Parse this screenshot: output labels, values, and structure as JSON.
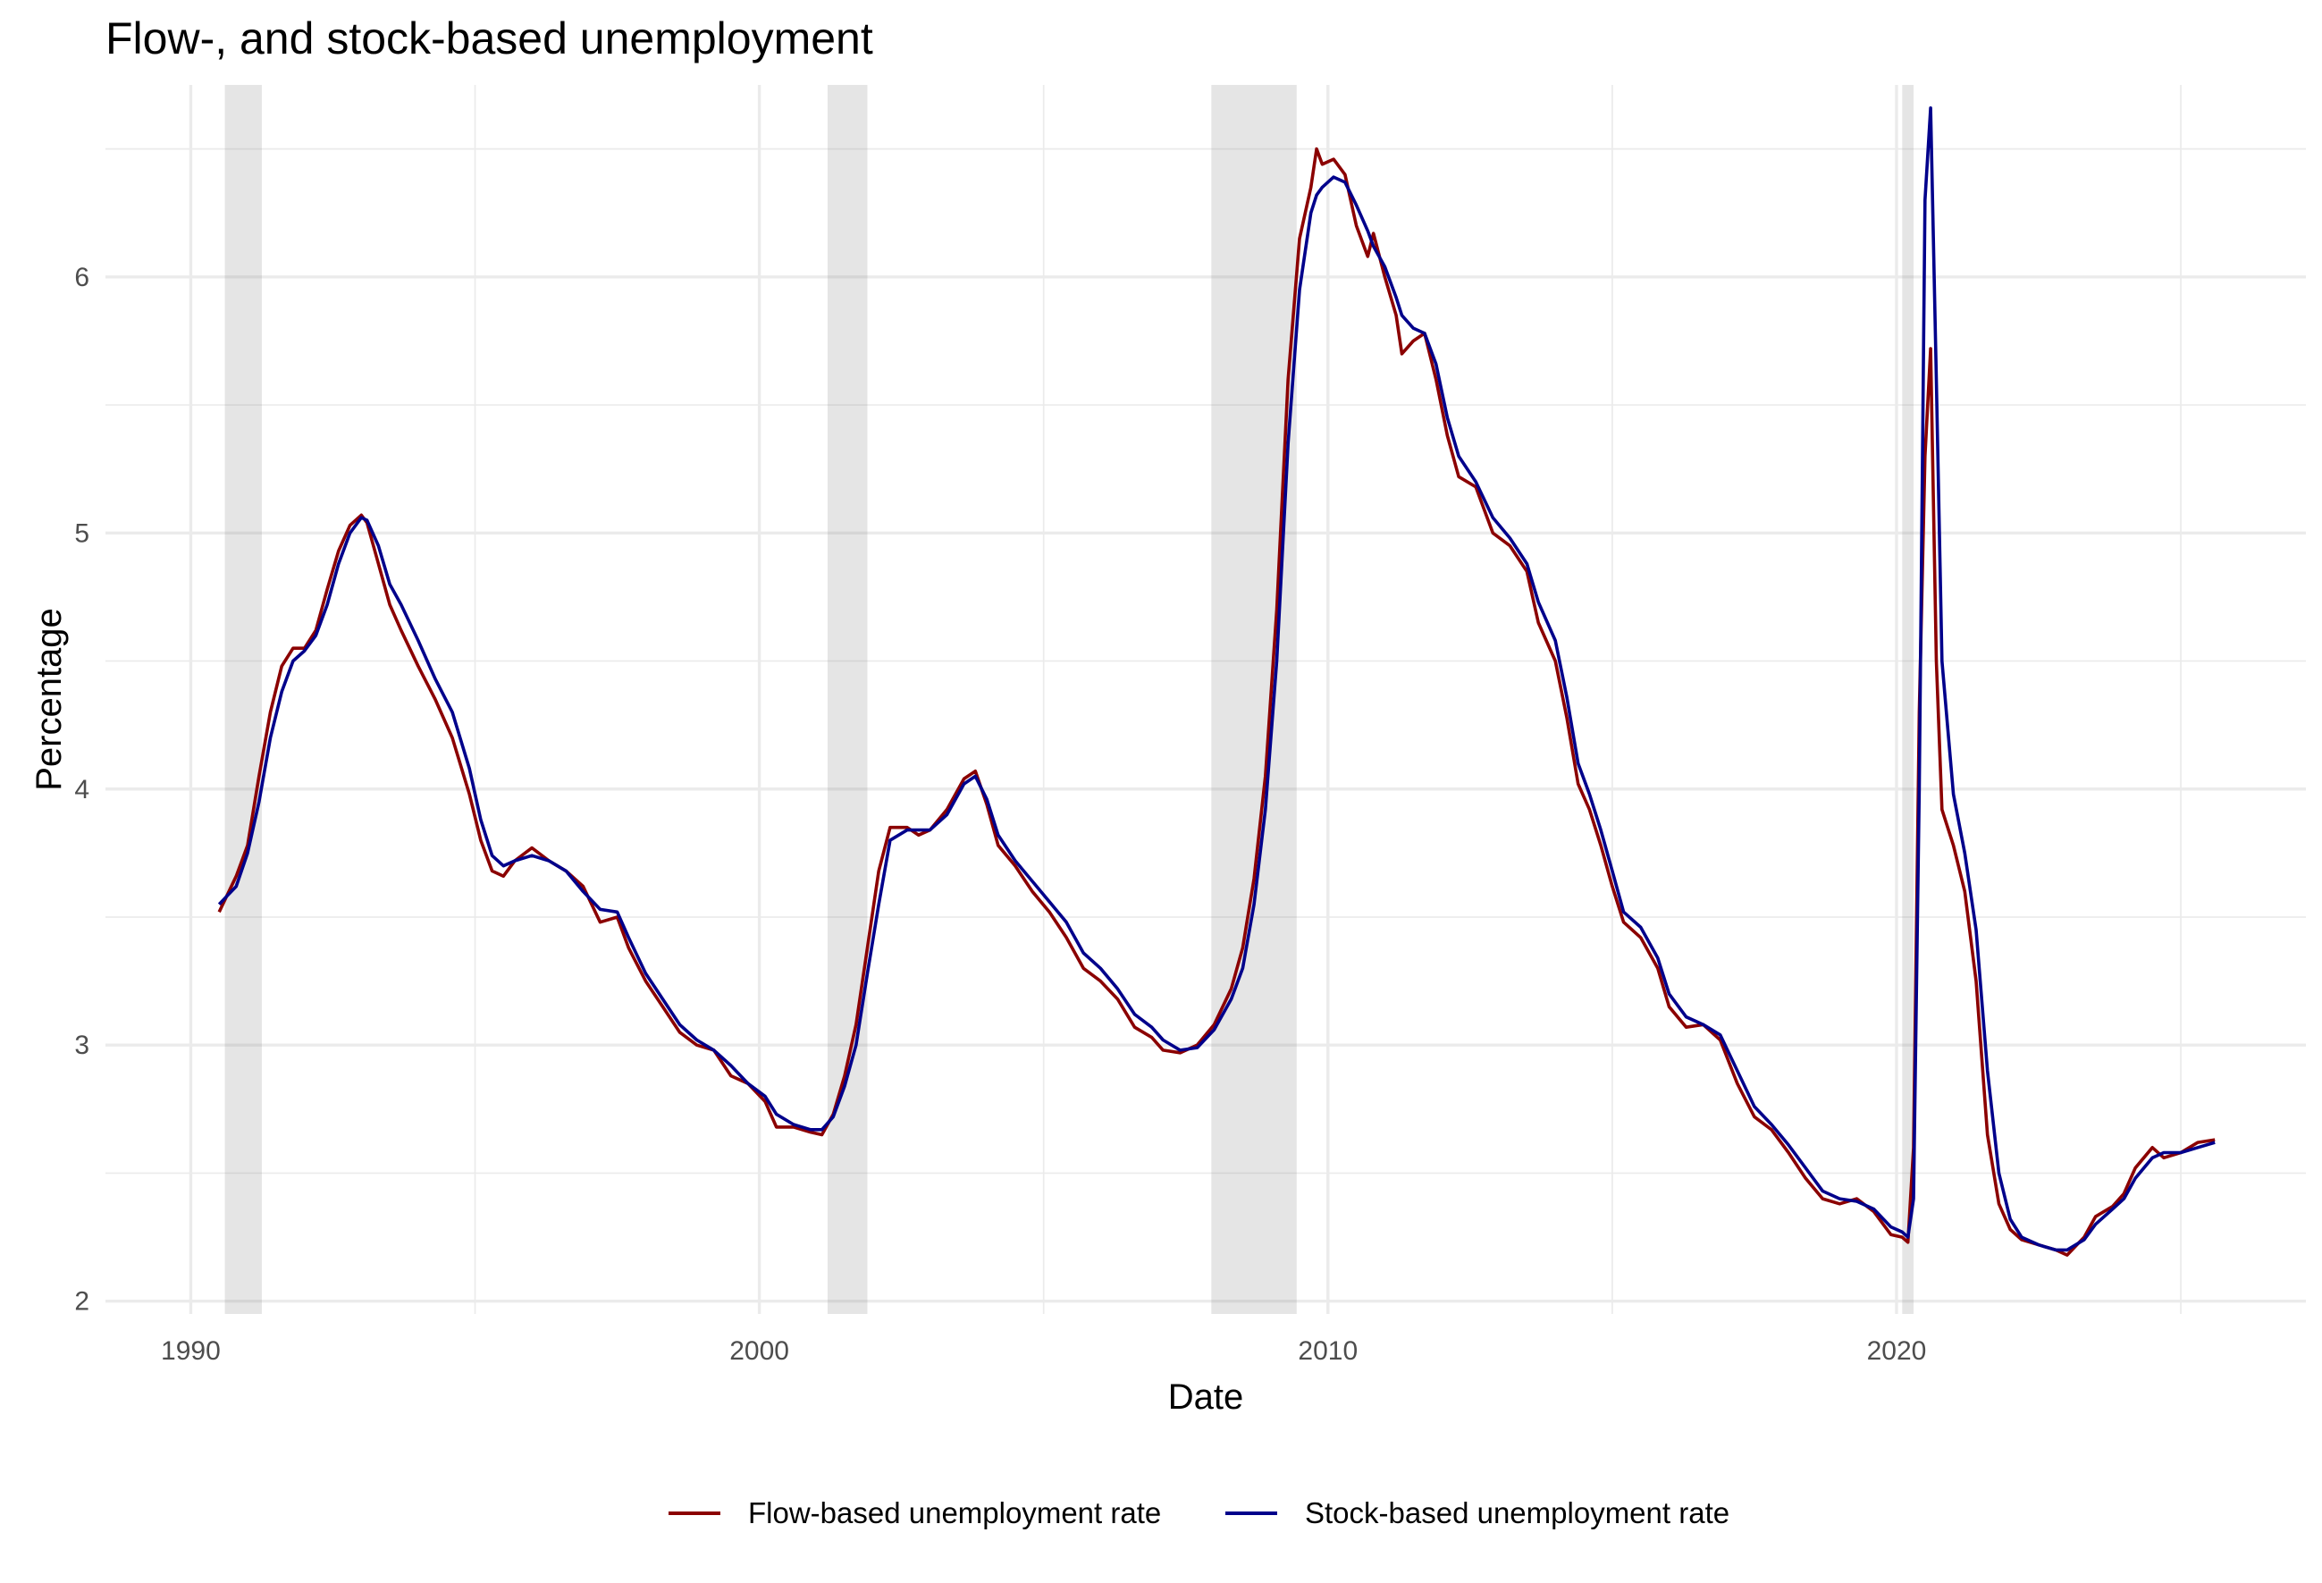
{
  "chart_data": {
    "type": "line",
    "title": "Flow-, and stock-based unemployment",
    "xlabel": "Date",
    "ylabel": "Percentage",
    "xlim": [
      1988.5,
      2027.2
    ],
    "ylim": [
      1.95,
      6.75
    ],
    "x_ticks": [
      1990,
      2000,
      2010,
      2020
    ],
    "x_tick_labels": [
      "1990",
      "2000",
      "2010",
      "2020"
    ],
    "x_minor_ticks": [
      1995,
      2005,
      2015,
      2025
    ],
    "y_ticks": [
      2,
      3,
      4,
      5,
      6
    ],
    "y_tick_labels": [
      "2",
      "3",
      "4",
      "5",
      "6"
    ],
    "y_minor_ticks": [
      2.5,
      3.5,
      4.5,
      5.5,
      6.5
    ],
    "grid": true,
    "legend_position": "bottom",
    "recessions": [
      {
        "start": 1990.6,
        "end": 1991.25
      },
      {
        "start": 2001.2,
        "end": 2001.9
      },
      {
        "start": 2007.95,
        "end": 2009.45
      },
      {
        "start": 2020.1,
        "end": 2020.3
      }
    ],
    "series": [
      {
        "name": "Flow-based unemployment rate",
        "color": "#8b0000",
        "points": [
          [
            1990.5,
            3.52
          ],
          [
            1990.8,
            3.66
          ],
          [
            1991.0,
            3.78
          ],
          [
            1991.2,
            4.05
          ],
          [
            1991.4,
            4.3
          ],
          [
            1991.6,
            4.48
          ],
          [
            1991.8,
            4.55
          ],
          [
            1992.0,
            4.55
          ],
          [
            1992.2,
            4.62
          ],
          [
            1992.4,
            4.78
          ],
          [
            1992.6,
            4.93
          ],
          [
            1992.8,
            5.03
          ],
          [
            1993.0,
            5.07
          ],
          [
            1993.1,
            5.04
          ],
          [
            1993.3,
            4.88
          ],
          [
            1993.5,
            4.72
          ],
          [
            1993.7,
            4.62
          ],
          [
            1994.0,
            4.48
          ],
          [
            1994.3,
            4.35
          ],
          [
            1994.6,
            4.2
          ],
          [
            1994.9,
            3.98
          ],
          [
            1995.1,
            3.8
          ],
          [
            1995.3,
            3.68
          ],
          [
            1995.5,
            3.66
          ],
          [
            1995.7,
            3.72
          ],
          [
            1996.0,
            3.77
          ],
          [
            1996.3,
            3.72
          ],
          [
            1996.6,
            3.68
          ],
          [
            1996.9,
            3.62
          ],
          [
            1997.2,
            3.48
          ],
          [
            1997.5,
            3.5
          ],
          [
            1997.7,
            3.38
          ],
          [
            1998.0,
            3.25
          ],
          [
            1998.3,
            3.15
          ],
          [
            1998.6,
            3.05
          ],
          [
            1998.9,
            3.0
          ],
          [
            1999.2,
            2.98
          ],
          [
            1999.5,
            2.88
          ],
          [
            1999.8,
            2.85
          ],
          [
            2000.1,
            2.78
          ],
          [
            2000.3,
            2.68
          ],
          [
            2000.6,
            2.68
          ],
          [
            2000.9,
            2.66
          ],
          [
            2001.1,
            2.65
          ],
          [
            2001.3,
            2.73
          ],
          [
            2001.5,
            2.88
          ],
          [
            2001.7,
            3.08
          ],
          [
            2001.9,
            3.38
          ],
          [
            2002.1,
            3.68
          ],
          [
            2002.3,
            3.85
          ],
          [
            2002.6,
            3.85
          ],
          [
            2002.8,
            3.82
          ],
          [
            2003.0,
            3.84
          ],
          [
            2003.3,
            3.92
          ],
          [
            2003.6,
            4.04
          ],
          [
            2003.8,
            4.07
          ],
          [
            2004.0,
            3.94
          ],
          [
            2004.2,
            3.78
          ],
          [
            2004.5,
            3.7
          ],
          [
            2004.8,
            3.6
          ],
          [
            2005.1,
            3.52
          ],
          [
            2005.4,
            3.42
          ],
          [
            2005.7,
            3.3
          ],
          [
            2006.0,
            3.25
          ],
          [
            2006.3,
            3.18
          ],
          [
            2006.6,
            3.07
          ],
          [
            2006.9,
            3.03
          ],
          [
            2007.1,
            2.98
          ],
          [
            2007.4,
            2.97
          ],
          [
            2007.7,
            3.0
          ],
          [
            2008.0,
            3.08
          ],
          [
            2008.3,
            3.22
          ],
          [
            2008.5,
            3.38
          ],
          [
            2008.7,
            3.65
          ],
          [
            2008.9,
            4.05
          ],
          [
            2009.1,
            4.7
          ],
          [
            2009.3,
            5.6
          ],
          [
            2009.5,
            6.15
          ],
          [
            2009.7,
            6.35
          ],
          [
            2009.8,
            6.5
          ],
          [
            2009.9,
            6.44
          ],
          [
            2010.1,
            6.46
          ],
          [
            2010.3,
            6.4
          ],
          [
            2010.5,
            6.2
          ],
          [
            2010.7,
            6.08
          ],
          [
            2010.8,
            6.17
          ],
          [
            2011.0,
            6.0
          ],
          [
            2011.2,
            5.85
          ],
          [
            2011.3,
            5.7
          ],
          [
            2011.5,
            5.75
          ],
          [
            2011.7,
            5.78
          ],
          [
            2011.9,
            5.6
          ],
          [
            2012.1,
            5.38
          ],
          [
            2012.3,
            5.22
          ],
          [
            2012.6,
            5.18
          ],
          [
            2012.9,
            5.0
          ],
          [
            2013.2,
            4.95
          ],
          [
            2013.5,
            4.85
          ],
          [
            2013.7,
            4.65
          ],
          [
            2014.0,
            4.5
          ],
          [
            2014.2,
            4.28
          ],
          [
            2014.4,
            4.02
          ],
          [
            2014.6,
            3.92
          ],
          [
            2014.8,
            3.78
          ],
          [
            2015.0,
            3.62
          ],
          [
            2015.2,
            3.48
          ],
          [
            2015.5,
            3.42
          ],
          [
            2015.8,
            3.3
          ],
          [
            2016.0,
            3.15
          ],
          [
            2016.3,
            3.07
          ],
          [
            2016.6,
            3.08
          ],
          [
            2016.9,
            3.02
          ],
          [
            2017.2,
            2.85
          ],
          [
            2017.5,
            2.72
          ],
          [
            2017.8,
            2.67
          ],
          [
            2018.1,
            2.58
          ],
          [
            2018.4,
            2.48
          ],
          [
            2018.7,
            2.4
          ],
          [
            2019.0,
            2.38
          ],
          [
            2019.3,
            2.4
          ],
          [
            2019.6,
            2.35
          ],
          [
            2019.9,
            2.26
          ],
          [
            2020.1,
            2.25
          ],
          [
            2020.2,
            2.23
          ],
          [
            2020.3,
            2.6
          ],
          [
            2020.4,
            4.3
          ],
          [
            2020.5,
            5.3
          ],
          [
            2020.6,
            5.72
          ],
          [
            2020.7,
            4.5
          ],
          [
            2020.8,
            3.92
          ],
          [
            2021.0,
            3.78
          ],
          [
            2021.2,
            3.6
          ],
          [
            2021.4,
            3.25
          ],
          [
            2021.6,
            2.65
          ],
          [
            2021.8,
            2.38
          ],
          [
            2022.0,
            2.28
          ],
          [
            2022.2,
            2.24
          ],
          [
            2022.5,
            2.22
          ],
          [
            2022.8,
            2.2
          ],
          [
            2023.0,
            2.18
          ],
          [
            2023.3,
            2.25
          ],
          [
            2023.5,
            2.33
          ],
          [
            2023.8,
            2.37
          ],
          [
            2024.0,
            2.42
          ],
          [
            2024.2,
            2.52
          ],
          [
            2024.5,
            2.6
          ],
          [
            2024.7,
            2.56
          ],
          [
            2025.0,
            2.58
          ],
          [
            2025.3,
            2.62
          ],
          [
            2025.6,
            2.63
          ]
        ]
      },
      {
        "name": "Stock-based unemployment rate",
        "color": "#00008b",
        "points": [
          [
            1990.5,
            3.55
          ],
          [
            1990.8,
            3.62
          ],
          [
            1991.0,
            3.75
          ],
          [
            1991.2,
            3.95
          ],
          [
            1991.4,
            4.2
          ],
          [
            1991.6,
            4.38
          ],
          [
            1991.8,
            4.5
          ],
          [
            1992.0,
            4.54
          ],
          [
            1992.2,
            4.6
          ],
          [
            1992.4,
            4.72
          ],
          [
            1992.6,
            4.88
          ],
          [
            1992.8,
            5.0
          ],
          [
            1993.0,
            5.06
          ],
          [
            1993.1,
            5.05
          ],
          [
            1993.3,
            4.95
          ],
          [
            1993.5,
            4.8
          ],
          [
            1993.7,
            4.72
          ],
          [
            1994.0,
            4.58
          ],
          [
            1994.3,
            4.43
          ],
          [
            1994.6,
            4.3
          ],
          [
            1994.9,
            4.08
          ],
          [
            1995.1,
            3.88
          ],
          [
            1995.3,
            3.74
          ],
          [
            1995.5,
            3.7
          ],
          [
            1995.7,
            3.72
          ],
          [
            1996.0,
            3.74
          ],
          [
            1996.3,
            3.72
          ],
          [
            1996.6,
            3.68
          ],
          [
            1996.9,
            3.6
          ],
          [
            1997.2,
            3.53
          ],
          [
            1997.5,
            3.52
          ],
          [
            1997.7,
            3.42
          ],
          [
            1998.0,
            3.28
          ],
          [
            1998.3,
            3.18
          ],
          [
            1998.6,
            3.08
          ],
          [
            1998.9,
            3.02
          ],
          [
            1999.2,
            2.98
          ],
          [
            1999.5,
            2.92
          ],
          [
            1999.8,
            2.85
          ],
          [
            2000.1,
            2.8
          ],
          [
            2000.3,
            2.73
          ],
          [
            2000.6,
            2.69
          ],
          [
            2000.9,
            2.67
          ],
          [
            2001.1,
            2.67
          ],
          [
            2001.3,
            2.72
          ],
          [
            2001.5,
            2.84
          ],
          [
            2001.7,
            3.0
          ],
          [
            2001.9,
            3.28
          ],
          [
            2002.1,
            3.55
          ],
          [
            2002.3,
            3.8
          ],
          [
            2002.6,
            3.84
          ],
          [
            2002.8,
            3.84
          ],
          [
            2003.0,
            3.84
          ],
          [
            2003.3,
            3.9
          ],
          [
            2003.6,
            4.02
          ],
          [
            2003.8,
            4.05
          ],
          [
            2004.0,
            3.96
          ],
          [
            2004.2,
            3.82
          ],
          [
            2004.5,
            3.72
          ],
          [
            2004.8,
            3.64
          ],
          [
            2005.1,
            3.56
          ],
          [
            2005.4,
            3.48
          ],
          [
            2005.7,
            3.36
          ],
          [
            2006.0,
            3.3
          ],
          [
            2006.3,
            3.22
          ],
          [
            2006.6,
            3.12
          ],
          [
            2006.9,
            3.07
          ],
          [
            2007.1,
            3.02
          ],
          [
            2007.4,
            2.98
          ],
          [
            2007.7,
            2.99
          ],
          [
            2008.0,
            3.06
          ],
          [
            2008.3,
            3.18
          ],
          [
            2008.5,
            3.3
          ],
          [
            2008.7,
            3.55
          ],
          [
            2008.9,
            3.92
          ],
          [
            2009.1,
            4.5
          ],
          [
            2009.3,
            5.35
          ],
          [
            2009.5,
            5.95
          ],
          [
            2009.7,
            6.25
          ],
          [
            2009.8,
            6.32
          ],
          [
            2009.9,
            6.35
          ],
          [
            2010.1,
            6.39
          ],
          [
            2010.3,
            6.37
          ],
          [
            2010.5,
            6.28
          ],
          [
            2010.7,
            6.18
          ],
          [
            2010.8,
            6.12
          ],
          [
            2011.0,
            6.04
          ],
          [
            2011.2,
            5.92
          ],
          [
            2011.3,
            5.85
          ],
          [
            2011.5,
            5.8
          ],
          [
            2011.7,
            5.78
          ],
          [
            2011.9,
            5.66
          ],
          [
            2012.1,
            5.45
          ],
          [
            2012.3,
            5.3
          ],
          [
            2012.6,
            5.2
          ],
          [
            2012.9,
            5.06
          ],
          [
            2013.2,
            4.98
          ],
          [
            2013.5,
            4.88
          ],
          [
            2013.7,
            4.73
          ],
          [
            2014.0,
            4.58
          ],
          [
            2014.2,
            4.36
          ],
          [
            2014.4,
            4.1
          ],
          [
            2014.6,
            3.98
          ],
          [
            2014.8,
            3.84
          ],
          [
            2015.0,
            3.68
          ],
          [
            2015.2,
            3.52
          ],
          [
            2015.5,
            3.46
          ],
          [
            2015.8,
            3.34
          ],
          [
            2016.0,
            3.2
          ],
          [
            2016.3,
            3.11
          ],
          [
            2016.6,
            3.08
          ],
          [
            2016.9,
            3.04
          ],
          [
            2017.2,
            2.9
          ],
          [
            2017.5,
            2.76
          ],
          [
            2017.8,
            2.69
          ],
          [
            2018.1,
            2.61
          ],
          [
            2018.4,
            2.52
          ],
          [
            2018.7,
            2.43
          ],
          [
            2019.0,
            2.4
          ],
          [
            2019.3,
            2.39
          ],
          [
            2019.6,
            2.36
          ],
          [
            2019.9,
            2.29
          ],
          [
            2020.1,
            2.27
          ],
          [
            2020.2,
            2.25
          ],
          [
            2020.3,
            2.4
          ],
          [
            2020.4,
            4.0
          ],
          [
            2020.5,
            6.3
          ],
          [
            2020.6,
            6.66
          ],
          [
            2020.7,
            5.6
          ],
          [
            2020.8,
            4.5
          ],
          [
            2021.0,
            3.98
          ],
          [
            2021.2,
            3.75
          ],
          [
            2021.4,
            3.45
          ],
          [
            2021.6,
            2.9
          ],
          [
            2021.8,
            2.5
          ],
          [
            2022.0,
            2.32
          ],
          [
            2022.2,
            2.25
          ],
          [
            2022.5,
            2.22
          ],
          [
            2022.8,
            2.2
          ],
          [
            2023.0,
            2.2
          ],
          [
            2023.3,
            2.24
          ],
          [
            2023.5,
            2.3
          ],
          [
            2023.8,
            2.36
          ],
          [
            2024.0,
            2.4
          ],
          [
            2024.2,
            2.48
          ],
          [
            2024.5,
            2.56
          ],
          [
            2024.7,
            2.58
          ],
          [
            2025.0,
            2.58
          ],
          [
            2025.3,
            2.6
          ],
          [
            2025.6,
            2.62
          ]
        ]
      }
    ]
  }
}
